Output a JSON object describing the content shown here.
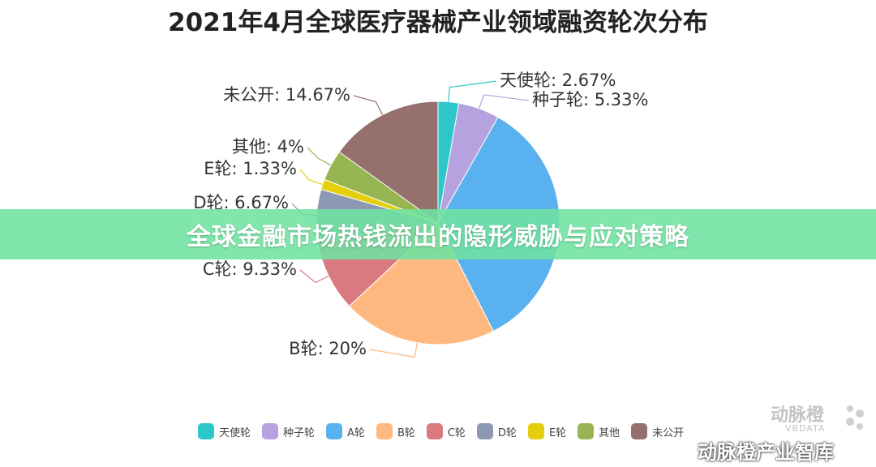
{
  "chart_data": {
    "type": "pie",
    "title": "2021年4月全球医疗器械产业领域融资轮次分布",
    "slices": [
      {
        "name": "天使轮",
        "value": 2.67,
        "label": "天使轮: 2.67%",
        "color": "#2ec7c9"
      },
      {
        "name": "种子轮",
        "value": 5.33,
        "label": "种子轮: 5.33%",
        "color": "#b6a2de"
      },
      {
        "name": "A轮",
        "value": 33.33,
        "label": "",
        "color": "#5ab1ef"
      },
      {
        "name": "B轮",
        "value": 20,
        "label": "B轮: 20%",
        "color": "#ffb980"
      },
      {
        "name": "C轮",
        "value": 9.33,
        "label": "C轮: 9.33%",
        "color": "#d87a80"
      },
      {
        "name": "D轮",
        "value": 6.67,
        "label": "D轮: 6.67%",
        "color": "#8d98b3"
      },
      {
        "name": "E轮",
        "value": 1.33,
        "label": "E轮: 1.33%",
        "color": "#e5cf0d"
      },
      {
        "name": "其他",
        "value": 4,
        "label": "其他: 4%",
        "color": "#97b552"
      },
      {
        "name": "未公开",
        "value": 14.67,
        "label": "未公开: 14.67%",
        "color": "#95706d"
      }
    ],
    "legend_position": "bottom"
  },
  "banner": {
    "text": "全球金融市场热钱流出的隐形威胁与应对策略"
  },
  "watermark": {
    "logo": "动脉橙",
    "sub": "VBDATA"
  },
  "footer": {
    "text": "动脉橙产业智库",
    "icon": "wechat-icon"
  }
}
